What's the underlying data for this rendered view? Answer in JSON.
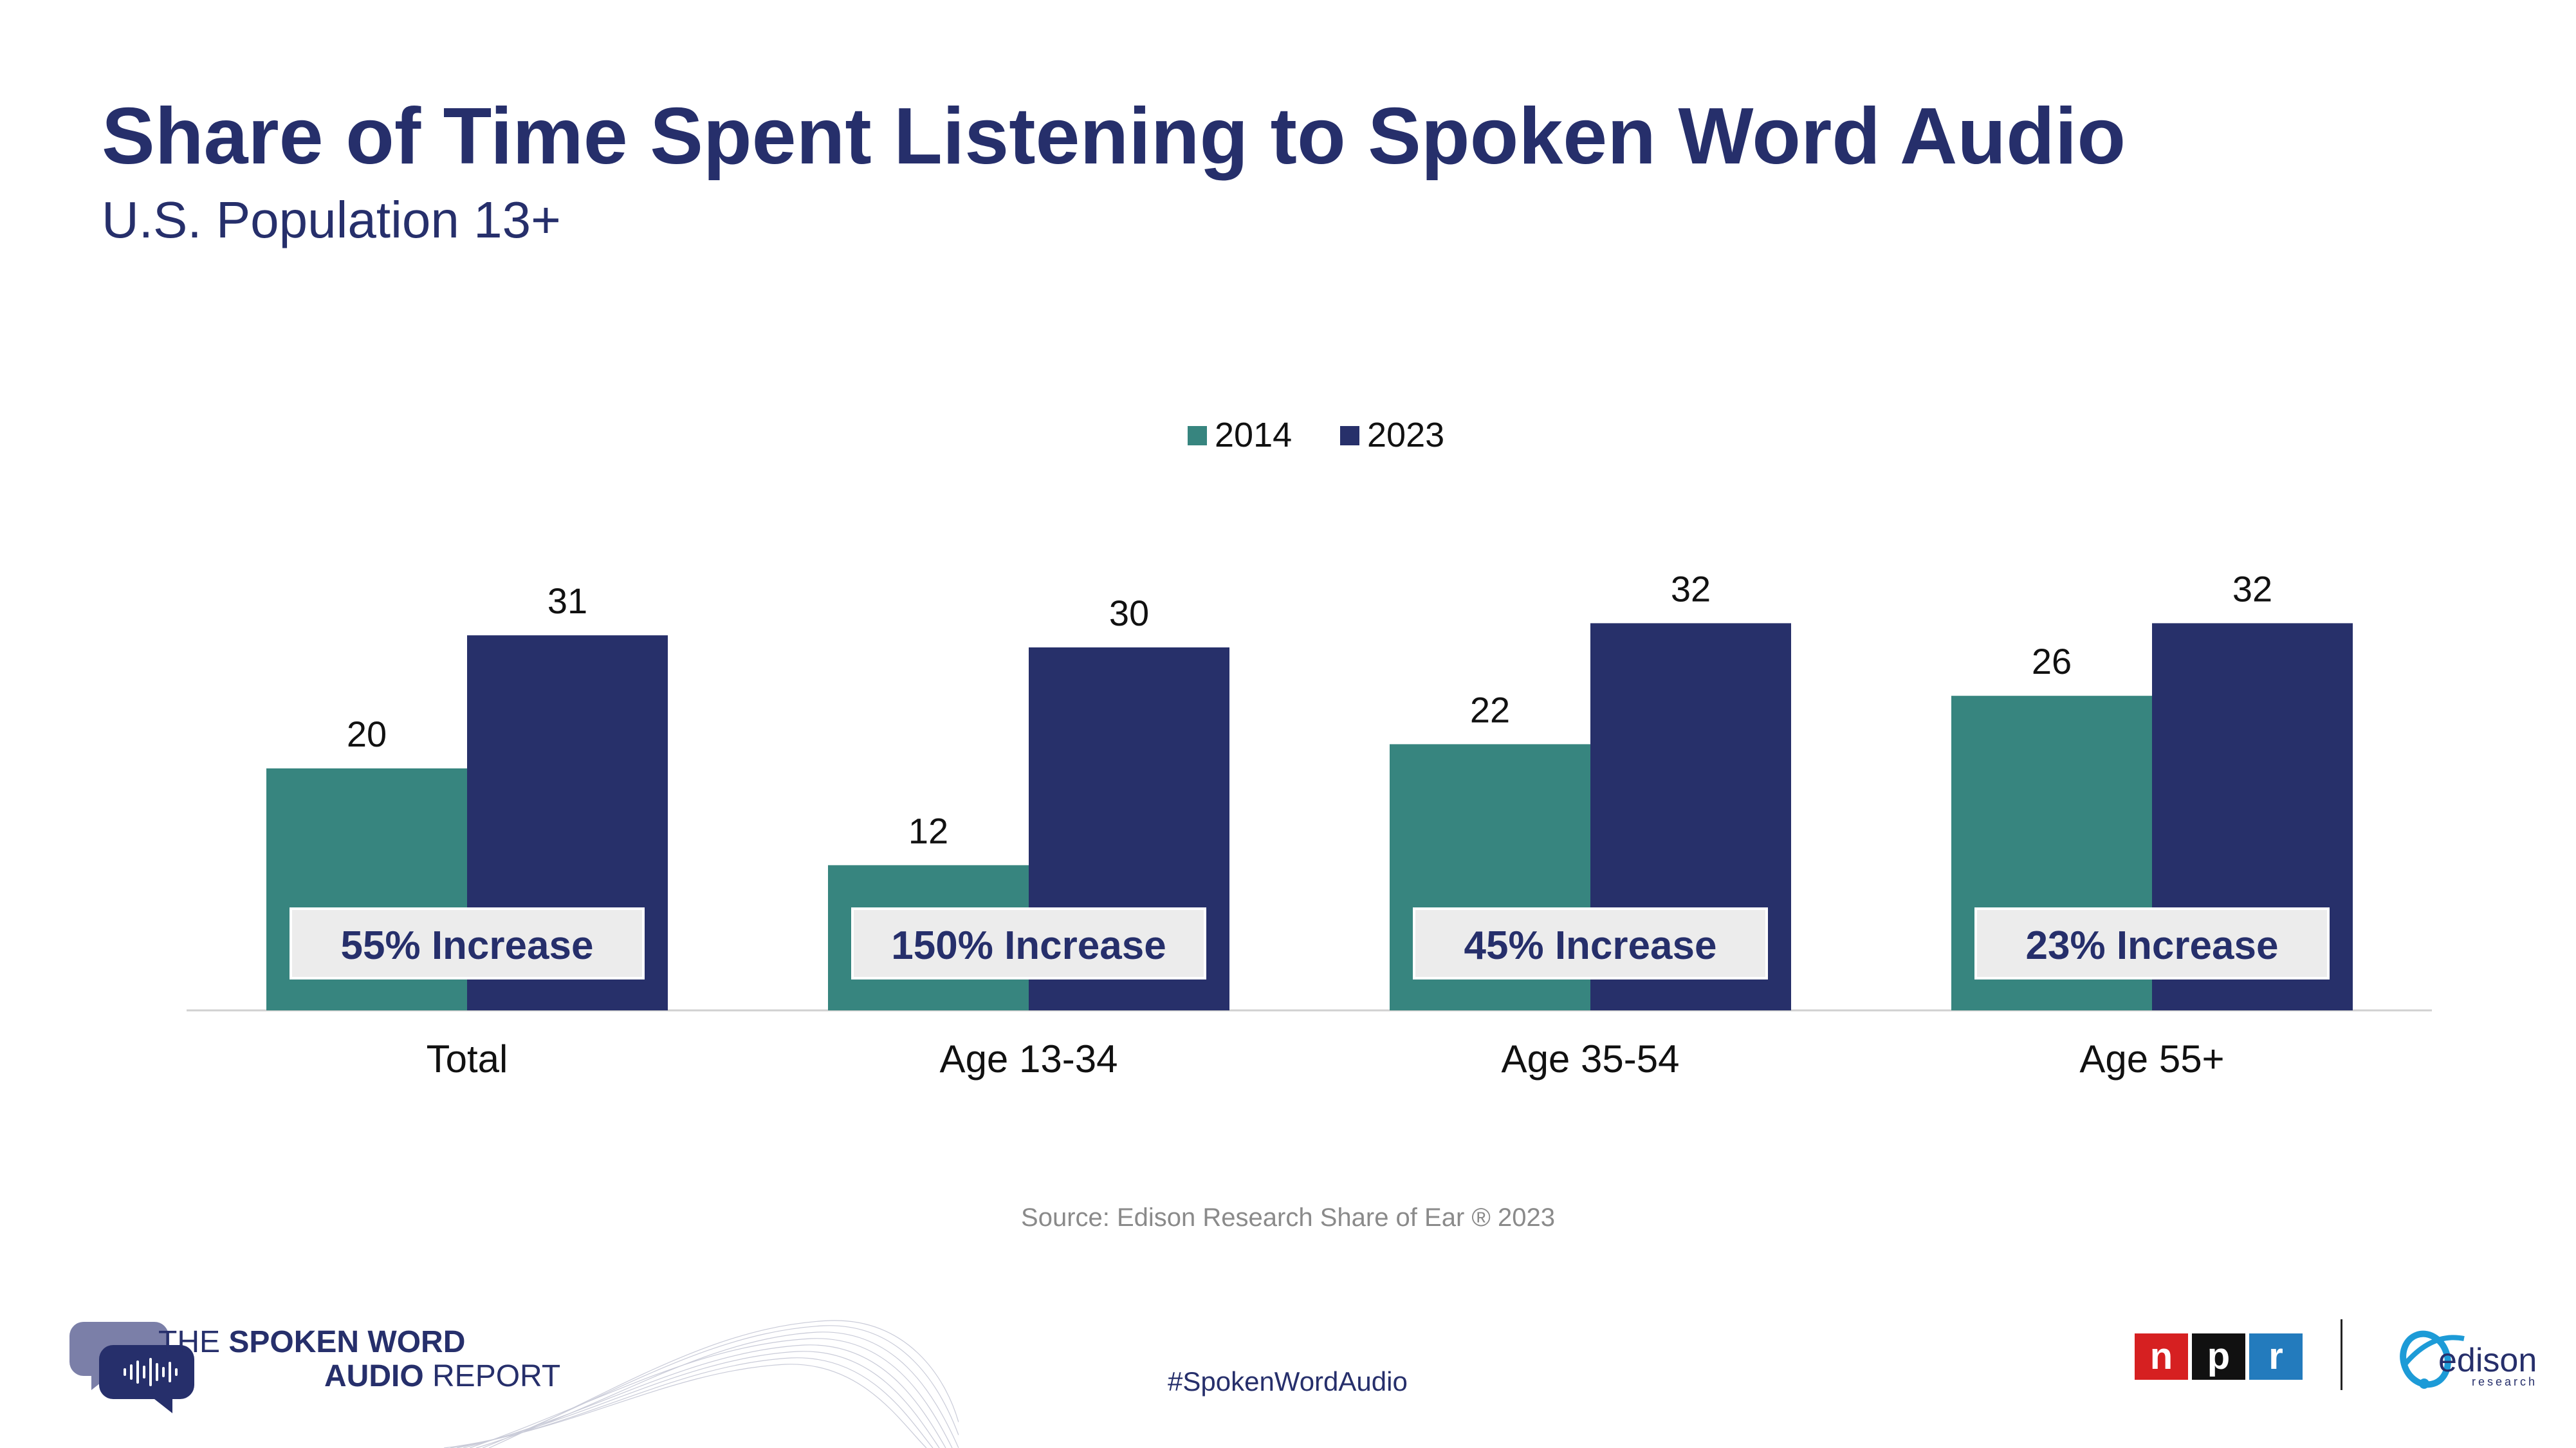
{
  "header": {
    "title": "Share of Time Spent Listening to Spoken Word Audio",
    "subtitle": "U.S. Population 13+"
  },
  "chart_data": {
    "type": "bar",
    "categories": [
      "Total",
      "Age 13-34",
      "Age 35-54",
      "Age 55+"
    ],
    "series": [
      {
        "name": "2014",
        "values": [
          20,
          12,
          22,
          26
        ],
        "color": "#37857f"
      },
      {
        "name": "2023",
        "values": [
          31,
          30,
          32,
          32
        ],
        "color": "#27306a"
      }
    ],
    "annotations": [
      "55% Increase",
      "150% Increase",
      "45% Increase",
      "23% Increase"
    ],
    "legend": "top-center",
    "ylim": [
      0,
      32
    ],
    "grid": false
  },
  "source": "Source: Edison Research Share of Ear ® 2023",
  "footer": {
    "hashtag": "#SpokenWordAudio",
    "report_logo": {
      "line1_plain": "THE ",
      "line1_bold": "SPOKEN WORD",
      "line2_bold": "AUDIO",
      "line2_plain": " REPORT"
    },
    "npr_logo": [
      "n",
      "p",
      "r"
    ],
    "edison_logo": {
      "word": "edison",
      "sub": "research"
    }
  }
}
